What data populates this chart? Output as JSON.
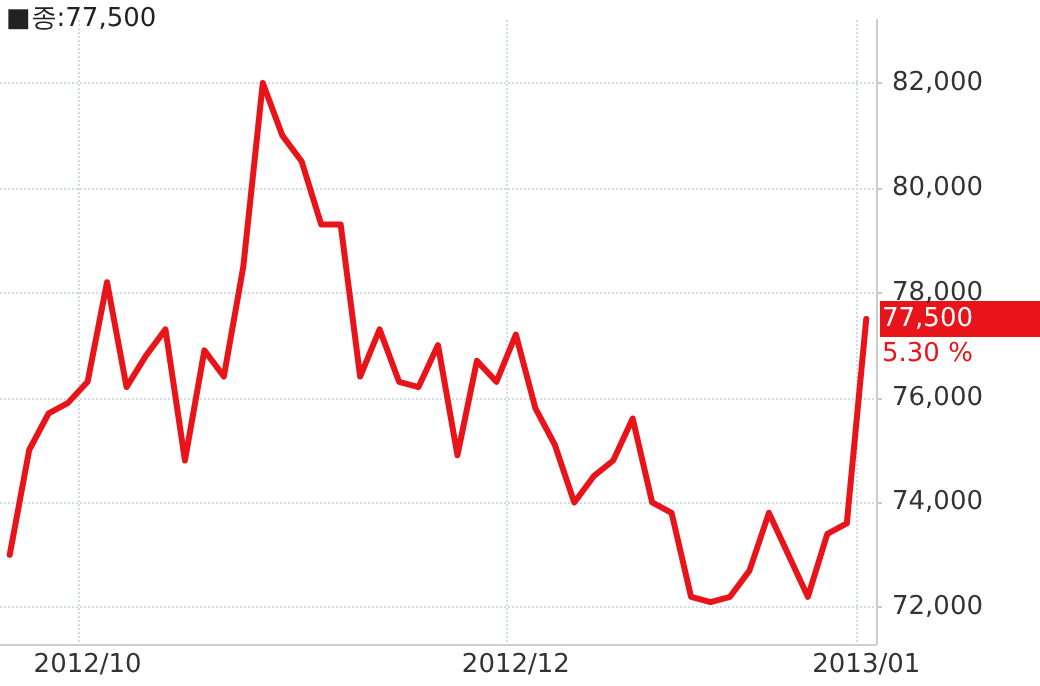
{
  "chart_data": {
    "type": "line",
    "categories": [
      null,
      null,
      null,
      null,
      "2012/10",
      null,
      null,
      null,
      null,
      null,
      null,
      null,
      null,
      null,
      null,
      null,
      null,
      null,
      null,
      null,
      null,
      null,
      null,
      null,
      null,
      null,
      "2012/12",
      null,
      null,
      null,
      null,
      null,
      null,
      null,
      null,
      null,
      null,
      null,
      null,
      null,
      null,
      null,
      null,
      null,
      "2013/01"
    ],
    "series": [
      {
        "color": "#e8141a",
        "values": [
          73000,
          75000,
          75700,
          75900,
          76300,
          78200,
          76200,
          76800,
          77300,
          74800,
          76900,
          76400,
          78500,
          82000,
          81000,
          80500,
          79300,
          79300,
          76400,
          77300,
          76300,
          76200,
          77000,
          74900,
          76700,
          76300,
          77200,
          75800,
          75100,
          74000,
          74500,
          74800,
          75600,
          74000,
          73800,
          72200,
          72100,
          72200,
          72700,
          73800,
          73000,
          72200,
          73400,
          73600,
          77500
        ]
      }
    ],
    "ylim": [
      71300,
      83200
    ],
    "yticks": [
      {
        "value": 72000,
        "label": "72,000"
      },
      {
        "value": 74000,
        "label": "74,000"
      },
      {
        "value": 76000,
        "label": "76,000"
      },
      {
        "value": 78000,
        "label": "78,000"
      },
      {
        "value": 80000,
        "label": "80,000"
      },
      {
        "value": 82000,
        "label": "82,000"
      }
    ],
    "grid": true,
    "marker": "none",
    "line_style": "solid",
    "annotations": [
      "■종:77,500",
      "77,500",
      "5.30 %"
    ]
  }
}
